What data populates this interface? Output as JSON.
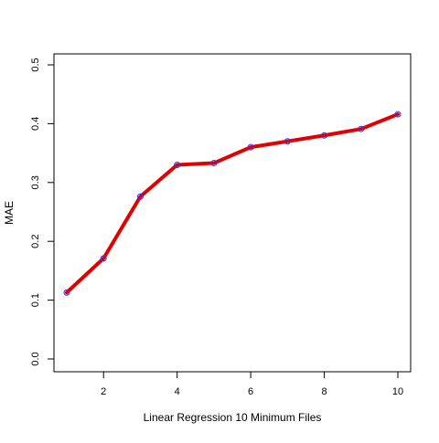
{
  "chart_data": {
    "type": "line",
    "title": "",
    "xlabel": "Linear Regression 10 Minimum  Files",
    "ylabel": "MAE",
    "x": [
      1,
      2,
      3,
      4,
      5,
      6,
      7,
      8,
      9,
      10
    ],
    "series": [
      {
        "values": [
          0.113,
          0.171,
          0.276,
          0.33,
          0.333,
          0.36,
          0.37,
          0.38,
          0.391,
          0.416
        ]
      }
    ],
    "xlim": [
      1,
      10
    ],
    "ylim": [
      0,
      0.5
    ],
    "xticks": [
      2,
      4,
      6,
      8,
      10
    ],
    "yticks": [
      0.0,
      0.1,
      0.2,
      0.3,
      0.4,
      0.5
    ],
    "ytick_labels": [
      "0.0",
      "0.1",
      "0.2",
      "0.3",
      "0.4",
      "0.5"
    ],
    "grid": false,
    "legend": "none",
    "line_color": "#e00000",
    "marker_color": "#3333ff"
  }
}
